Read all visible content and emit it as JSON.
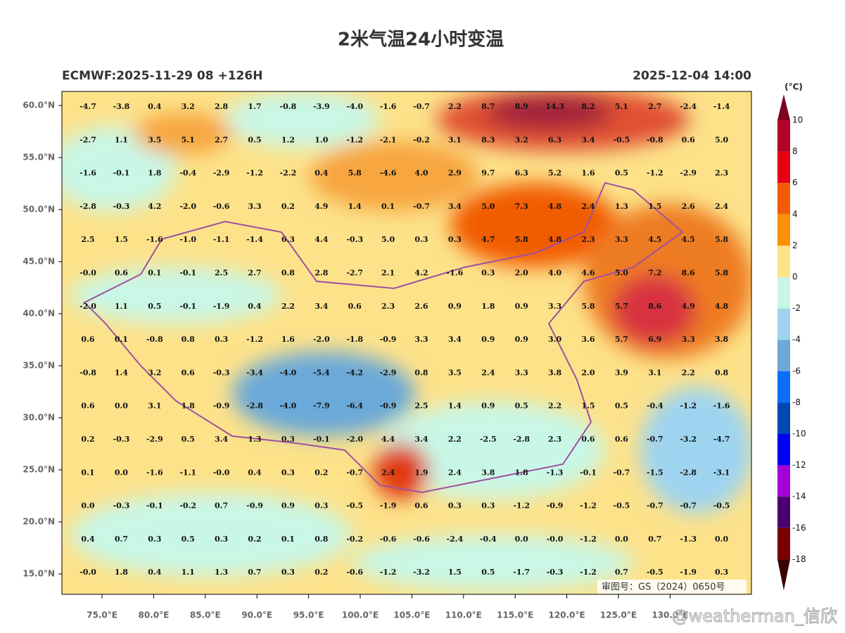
{
  "header": {
    "title": "2米气温24小时变温",
    "left": "ECMWF:2025-11-29 08 +126H",
    "right": "2025-12-04 14:00"
  },
  "map": {
    "lat_ticks": [
      "60.0°N",
      "55.0°N",
      "50.0°N",
      "45.0°N",
      "40.0°N",
      "35.0°N",
      "30.0°N",
      "25.0°N",
      "20.0°N",
      "15.0°N"
    ],
    "lon_ticks": [
      "75.0°E",
      "80.0°E",
      "85.0°E",
      "90.0°E",
      "95.0°E",
      "100.0°E",
      "105.0°E",
      "110.0°E",
      "115.0°E",
      "120.0°E",
      "125.0°E",
      "130.0°E"
    ],
    "grid": [
      [
        "-4.7",
        "-3.8",
        "0.4",
        "3.2",
        "2.8",
        "1.7",
        "-0.8",
        "-3.9",
        "-4.0",
        "-1.6",
        "-0.7",
        "2.2",
        "8.7",
        "8.9",
        "14.3",
        "8.2",
        "5.1",
        "2.7",
        "-2.4",
        "-1.4"
      ],
      [
        "-2.7",
        "1.1",
        "3.5",
        "5.1",
        "2.7",
        "0.5",
        "1.2",
        "1.0",
        "-1.2",
        "-2.1",
        "-0.2",
        "3.1",
        "8.3",
        "3.2",
        "6.3",
        "3.4",
        "-0.5",
        "-0.8",
        "0.6",
        "5.0"
      ],
      [
        "-1.6",
        "-0.1",
        "1.8",
        "-0.4",
        "-2.9",
        "-1.2",
        "-2.2",
        "0.4",
        "5.8",
        "-4.6",
        "4.0",
        "2.9",
        "9.7",
        "6.3",
        "5.2",
        "1.6",
        "0.5",
        "-1.2",
        "-2.9",
        "2.3"
      ],
      [
        "-2.8",
        "-0.3",
        "4.2",
        "-2.0",
        "-0.6",
        "3.3",
        "0.2",
        "4.9",
        "1.4",
        "0.1",
        "-0.7",
        "3.4",
        "5.0",
        "7.3",
        "4.8",
        "2.4",
        "1.3",
        "1.5",
        "2.6",
        "2.4"
      ],
      [
        "2.5",
        "1.5",
        "-1.6",
        "-1.0",
        "-1.1",
        "-1.4",
        "6.3",
        "4.4",
        "-0.3",
        "5.0",
        "0.3",
        "0.3",
        "4.7",
        "5.8",
        "4.8",
        "2.3",
        "3.3",
        "4.5",
        "4.5",
        "5.8"
      ],
      [
        "-0.0",
        "0.6",
        "0.1",
        "-0.1",
        "2.5",
        "2.7",
        "0.8",
        "2.8",
        "-2.7",
        "2.1",
        "4.2",
        "-1.6",
        "0.3",
        "2.0",
        "4.0",
        "4.6",
        "5.0",
        "7.2",
        "8.6",
        "5.8"
      ],
      [
        "-2.0",
        "1.1",
        "0.5",
        "-0.1",
        "-1.9",
        "0.4",
        "2.2",
        "3.4",
        "0.6",
        "2.3",
        "2.6",
        "0.9",
        "1.8",
        "0.9",
        "3.3",
        "5.8",
        "5.7",
        "8.6",
        "4.9",
        "4.8"
      ],
      [
        "0.6",
        "0.1",
        "-0.8",
        "0.8",
        "0.3",
        "-1.2",
        "1.6",
        "-2.0",
        "-1.8",
        "-0.9",
        "3.3",
        "3.4",
        "0.9",
        "0.9",
        "3.0",
        "3.6",
        "5.7",
        "6.9",
        "3.3",
        "3.8"
      ],
      [
        "-0.8",
        "1.4",
        "3.2",
        "0.6",
        "-0.3",
        "-3.4",
        "-4.0",
        "-5.4",
        "-4.2",
        "-2.9",
        "0.8",
        "3.5",
        "2.4",
        "3.3",
        "3.8",
        "2.0",
        "3.9",
        "3.1",
        "2.2",
        "0.8"
      ],
      [
        "0.6",
        "0.0",
        "3.1",
        "1.8",
        "-0.9",
        "-2.8",
        "-4.0",
        "-7.9",
        "-6.4",
        "-0.9",
        "2.5",
        "1.4",
        "0.9",
        "0.5",
        "2.2",
        "1.5",
        "0.5",
        "-0.4",
        "-1.2",
        "-1.6"
      ],
      [
        "0.2",
        "-0.3",
        "-2.9",
        "0.5",
        "3.4",
        "1.3",
        "0.3",
        "-0.1",
        "-2.0",
        "4.4",
        "3.4",
        "2.2",
        "-2.5",
        "-2.8",
        "2.3",
        "0.6",
        "0.6",
        "-0.7",
        "-3.2",
        "-4.7"
      ],
      [
        "0.1",
        "0.0",
        "-1.6",
        "-1.1",
        "-0.0",
        "0.4",
        "0.3",
        "0.2",
        "-0.7",
        "2.4",
        "1.9",
        "2.4",
        "3.8",
        "1.8",
        "-1.3",
        "-0.1",
        "-0.7",
        "-1.5",
        "-2.8",
        "-3.1"
      ],
      [
        "0.0",
        "-0.3",
        "-0.1",
        "-0.2",
        "0.7",
        "-0.9",
        "0.9",
        "0.3",
        "-0.5",
        "-1.9",
        "0.6",
        "0.3",
        "0.3",
        "-1.2",
        "-0.9",
        "-1.2",
        "-0.5",
        "-0.7",
        "-0.7",
        "-0.5"
      ],
      [
        "0.4",
        "0.7",
        "0.3",
        "0.5",
        "0.3",
        "0.2",
        "0.1",
        "0.8",
        "-0.2",
        "-0.6",
        "-0.6",
        "-2.4",
        "-0.4",
        "0.0",
        "-0.0",
        "-1.2",
        "0.0",
        "0.7",
        "-1.3",
        "0.0"
      ],
      [
        "-0.0",
        "1.8",
        "0.4",
        "1.1",
        "1.3",
        "0.7",
        "0.3",
        "0.2",
        "-0.6",
        "-1.2",
        "-3.2",
        "1.5",
        "0.5",
        "-1.7",
        "-0.3",
        "-1.2",
        "0.7",
        "-0.5",
        "-1.9",
        "0.3"
      ]
    ],
    "stamp": "审图号：GS（2024）0650号"
  },
  "colorbar": {
    "unit": "(°C)",
    "levels": [
      10,
      8,
      6,
      4,
      2,
      0,
      -2,
      -4,
      -6,
      -8,
      -10,
      -12,
      -14,
      -16,
      -18
    ],
    "colors": [
      "#7f0022",
      "#b5002a",
      "#e60012",
      "#f25c05",
      "#fb9208",
      "#fde28a",
      "#c9f7e6",
      "#9ed4f0",
      "#6aa9d9",
      "#0a6ff5",
      "#0047b3",
      "#0000f5",
      "#a300d9",
      "#4c006f",
      "#7a0000",
      "#3a0000"
    ]
  },
  "watermark": "@weatherman_信欣"
}
